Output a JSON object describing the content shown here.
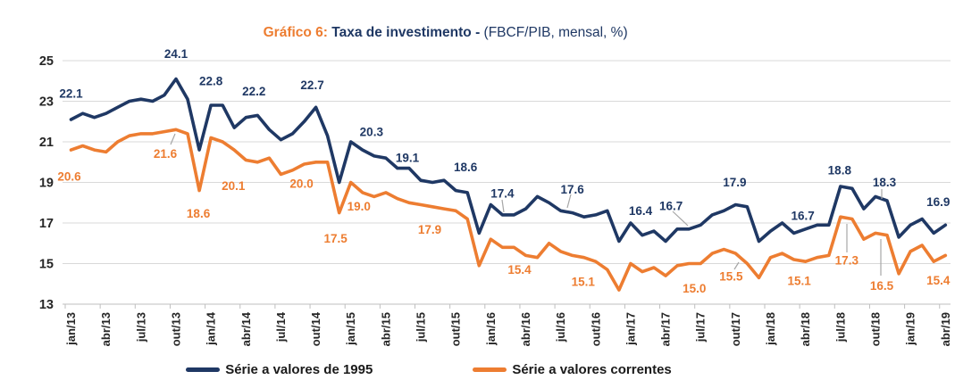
{
  "title": {
    "prefix": "Gráfico 6: ",
    "main": "Taxa de investimento - ",
    "suffix": "(FBCF/PIB, mensal, %)"
  },
  "colors": {
    "navy": "#1F3864",
    "orange": "#ED7D31",
    "grid": "#D9D9D9",
    "axis": "#BFBFBF",
    "tick_text": "#262626",
    "leader": "#A6A6A6",
    "background": "#FFFFFF"
  },
  "chart_data": {
    "type": "line",
    "title": "Gráfico 6: Taxa de investimento - (FBCF/PIB, mensal, %)",
    "xlabel": "",
    "ylabel": "",
    "ylim": [
      13,
      25
    ],
    "yticks": [
      25,
      23,
      21,
      19,
      17,
      15,
      13
    ],
    "grid": "horizontal",
    "legend_position": "bottom",
    "x_start": "jan/13",
    "x_end": "abr/19",
    "n_months": 76,
    "x_tick_interval": 3,
    "x_tick_labels": [
      "jan/13",
      "abr/13",
      "jul/13",
      "out/13",
      "jan/14",
      "abr/14",
      "jul/14",
      "out/14",
      "jan/15",
      "abr/15",
      "jul/15",
      "out/15",
      "jan/16",
      "abr/16",
      "jul/16",
      "out/16",
      "jan/17",
      "abr/17",
      "jul/17",
      "out/17",
      "jan/18",
      "abr/18",
      "jul/18",
      "out/18",
      "jan/19",
      "abr/19"
    ],
    "series": [
      {
        "name": "Série a valores correntes",
        "color": "#ED7D31",
        "values": [
          20.6,
          20.8,
          20.6,
          20.5,
          21.0,
          21.3,
          21.4,
          21.4,
          21.5,
          21.6,
          21.4,
          18.6,
          21.2,
          21.0,
          20.6,
          20.1,
          20.0,
          20.2,
          19.4,
          19.6,
          19.9,
          20.0,
          20.0,
          17.5,
          19.0,
          18.5,
          18.3,
          18.5,
          18.2,
          18.0,
          17.9,
          17.8,
          17.7,
          17.6,
          17.2,
          14.9,
          16.2,
          15.8,
          15.8,
          15.4,
          15.3,
          16.0,
          15.6,
          15.4,
          15.3,
          15.1,
          14.7,
          13.7,
          15.0,
          14.6,
          14.8,
          14.4,
          14.9,
          15.0,
          15.0,
          15.5,
          15.7,
          15.5,
          15.0,
          14.3,
          15.3,
          15.5,
          15.2,
          15.1,
          15.3,
          15.4,
          17.3,
          17.2,
          16.2,
          16.5,
          16.4,
          14.5,
          15.6,
          15.9,
          15.1,
          15.4
        ],
        "point_labels": [
          {
            "month": "jan/13",
            "index": 0,
            "text": "20.6",
            "dx": -2,
            "dy": 30
          },
          {
            "month": "out/13",
            "index": 9,
            "text": "21.6",
            "dx": -12,
            "dy": 27,
            "leader": [
              191,
              162,
              196,
              150
            ]
          },
          {
            "month": "dez/13",
            "index": 11,
            "text": "18.6",
            "dx": -1,
            "dy": 26
          },
          {
            "month": "abr/14",
            "index": 15,
            "text": "20.1",
            "dx": -14,
            "dy": 29
          },
          {
            "month": "out/14",
            "index": 21,
            "text": "20.0",
            "dx": -16,
            "dy": 24
          },
          {
            "month": "dez/14",
            "index": 23,
            "text": "17.5",
            "dx": -4,
            "dy": 29
          },
          {
            "month": "jan/15",
            "index": 24,
            "text": "19.0",
            "dx": 9,
            "dy": 27
          },
          {
            "month": "jul/15",
            "index": 30,
            "text": "17.9",
            "dx": 10,
            "dy": 28
          },
          {
            "month": "abr/16",
            "index": 39,
            "text": "15.4",
            "dx": -7,
            "dy": 16
          },
          {
            "month": "out/16",
            "index": 45,
            "text": "15.1",
            "dx": -14,
            "dy": 23
          },
          {
            "month": "jul/17",
            "index": 54,
            "text": "15.0",
            "dx": -7,
            "dy": 28
          },
          {
            "month": "out/17",
            "index": 57,
            "text": "15.5",
            "dx": -5,
            "dy": 26,
            "leader": [
              822,
              302,
              827,
              294
            ]
          },
          {
            "month": "abr/18",
            "index": 63,
            "text": "15.1",
            "dx": -7,
            "dy": 22
          },
          {
            "month": "jul/18",
            "index": 66,
            "text": "17.3",
            "dx": 7,
            "dy": 49,
            "leader": [
              948,
              251,
              948,
              283
            ]
          },
          {
            "month": "out/18",
            "index": 69,
            "text": "16.5",
            "dx": 7,
            "dy": 59,
            "leader": [
              986,
              268,
              986,
              309
            ]
          },
          {
            "month": "abr/19",
            "index": 75,
            "text": "15.4",
            "dx": -8,
            "dy": 28
          }
        ]
      },
      {
        "name": "Série a valores de 1995",
        "color": "#1F3864",
        "values": [
          22.1,
          22.4,
          22.2,
          22.4,
          22.7,
          23.0,
          23.1,
          23.0,
          23.3,
          24.1,
          23.1,
          20.6,
          22.8,
          22.8,
          21.7,
          22.2,
          22.3,
          21.6,
          21.1,
          21.4,
          22.0,
          22.7,
          21.3,
          19.0,
          21.0,
          20.6,
          20.3,
          20.2,
          19.7,
          19.7,
          19.1,
          19.0,
          19.1,
          18.6,
          18.5,
          16.5,
          17.9,
          17.4,
          17.4,
          17.7,
          18.3,
          18.0,
          17.6,
          17.5,
          17.3,
          17.4,
          17.6,
          16.1,
          17.0,
          16.4,
          16.6,
          16.1,
          16.7,
          16.7,
          16.9,
          17.4,
          17.6,
          17.9,
          17.8,
          16.1,
          16.6,
          17.0,
          16.5,
          16.7,
          16.9,
          16.9,
          18.8,
          18.7,
          17.7,
          18.3,
          18.1,
          16.3,
          16.9,
          17.2,
          16.5,
          16.9
        ],
        "point_labels": [
          {
            "month": "jan/13",
            "index": 0,
            "text": "22.1",
            "dx": 0,
            "dy": -29
          },
          {
            "month": "out/13",
            "index": 9,
            "text": "24.1",
            "dx": 0,
            "dy": -28
          },
          {
            "month": "jan/14",
            "index": 12,
            "text": "22.8",
            "dx": 0,
            "dy": -27
          },
          {
            "month": "abr/14",
            "index": 15,
            "text": "22.2",
            "dx": 9,
            "dy": -29
          },
          {
            "month": "out/14",
            "index": 21,
            "text": "22.7",
            "dx": -4,
            "dy": -25
          },
          {
            "month": "mar/15",
            "index": 26,
            "text": "20.3",
            "dx": -3,
            "dy": -27
          },
          {
            "month": "jul/15",
            "index": 30,
            "text": "19.1",
            "dx": -15,
            "dy": -25
          },
          {
            "month": "out/15",
            "index": 33,
            "text": "18.6",
            "dx": 11,
            "dy": -26
          },
          {
            "month": "fev/16",
            "index": 37,
            "text": "17.4",
            "dx": 0,
            "dy": -24,
            "leader": [
              562,
              224,
              564,
              238
            ]
          },
          {
            "month": "jul/16",
            "index": 42,
            "text": "17.6",
            "dx": 13,
            "dy": -24,
            "leader": [
              639,
              218,
              635,
              233
            ]
          },
          {
            "month": "fev/17",
            "index": 49,
            "text": "16.4",
            "dx": -2,
            "dy": -27
          },
          {
            "month": "jun/17",
            "index": 53,
            "text": "16.7",
            "dx": -20,
            "dy": -26,
            "leader": [
              753,
              237,
              770,
              253
            ]
          },
          {
            "month": "out/17",
            "index": 57,
            "text": "17.9",
            "dx": -1,
            "dy": -25
          },
          {
            "month": "abr/18",
            "index": 63,
            "text": "16.7",
            "dx": -3,
            "dy": -15
          },
          {
            "month": "jul/18",
            "index": 66,
            "text": "18.8",
            "dx": -1,
            "dy": -18
          },
          {
            "month": "out/18",
            "index": 69,
            "text": "18.3",
            "dx": 10,
            "dy": -16,
            "leader": [
              987,
              212,
              987,
              223
            ]
          },
          {
            "month": "abr/19",
            "index": 75,
            "text": "16.9",
            "dx": -8,
            "dy": -26
          }
        ]
      }
    ]
  }
}
